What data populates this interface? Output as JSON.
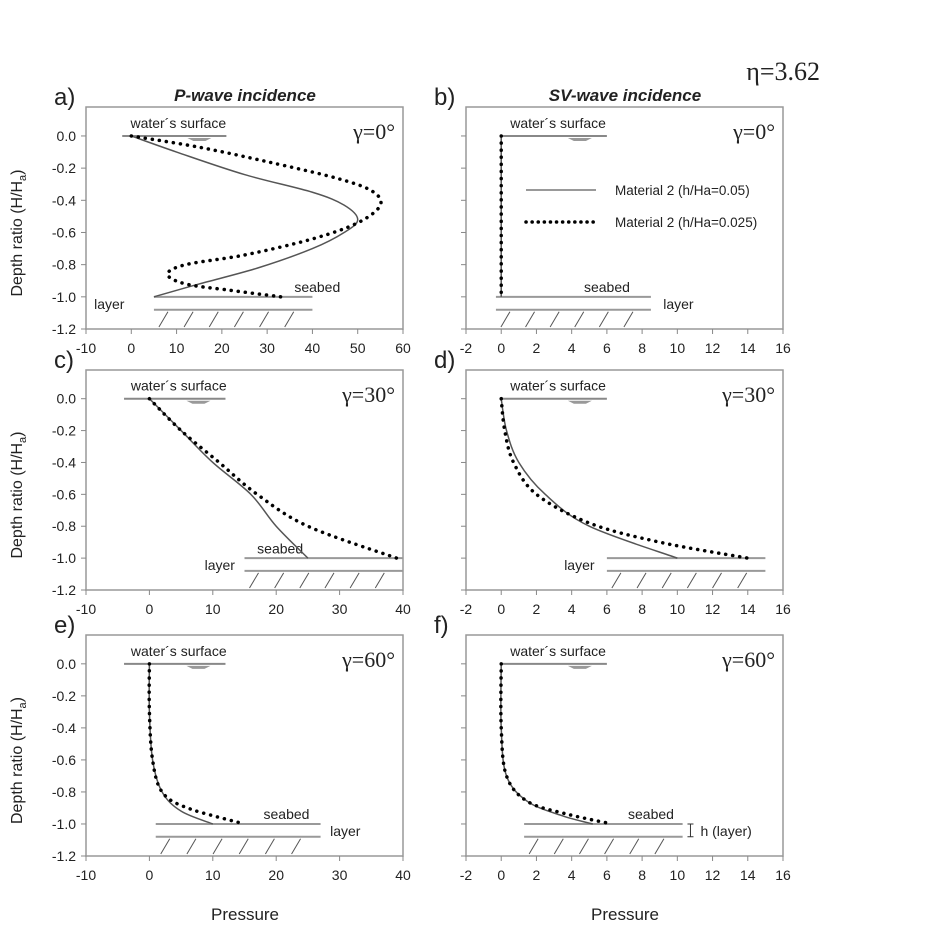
{
  "figure": {
    "eta_label": "η=3.62",
    "column_titles": [
      "P-wave incidence",
      "SV-wave incidence"
    ],
    "ylabel": "Depth ratio (H/Ha)",
    "xlabel": "Pressure",
    "legend": {
      "placement": "inside panel b, upper-middle",
      "entries": [
        {
          "label": "Material 2 (h/Ha=0.05)",
          "style": "solid",
          "color": "#555555"
        },
        {
          "label": "Material 2 (h/Ha=0.025)",
          "style": "dotted",
          "color": "#000000"
        }
      ]
    }
  },
  "chart_data": [
    {
      "type": "line",
      "panel": "a)",
      "angle": "γ=0°",
      "xlim": [
        -10,
        60
      ],
      "xticks": [
        -10,
        0,
        10,
        20,
        30,
        40,
        50,
        60
      ],
      "ylim": [
        -1.2,
        0.18
      ],
      "yticks": [
        "0.0",
        "-0.2",
        "-0.4",
        "-0.6",
        "-0.8",
        "-1.0",
        "-1.2"
      ],
      "annotations": {
        "water": "water´s surface",
        "seabed": "seabed",
        "layer": "layer"
      },
      "series": [
        {
          "name": "Material 2 (h/Ha=0.05)",
          "x": [
            0,
            10,
            25,
            40,
            47,
            50,
            47,
            40,
            28,
            15,
            5
          ],
          "y": [
            0,
            -0.1,
            -0.24,
            -0.35,
            -0.43,
            -0.52,
            -0.6,
            -0.7,
            -0.82,
            -0.92,
            -1.0
          ]
        },
        {
          "name": "Material 2 (h/Ha=0.025)",
          "x": [
            0,
            15,
            30,
            45,
            53,
            55,
            50,
            40,
            25,
            12,
            8,
            12,
            22,
            33
          ],
          "y": [
            0,
            -0.07,
            -0.16,
            -0.26,
            -0.34,
            -0.43,
            -0.54,
            -0.64,
            -0.74,
            -0.8,
            -0.86,
            -0.92,
            -0.96,
            -1.0
          ]
        }
      ],
      "deco": {
        "water": [
          -2,
          21
        ],
        "bed": [
          5,
          40
        ],
        "seabedLabel": [
          36,
          -0.97
        ],
        "layerLabel": [
          -1.5,
          -1.05,
          "end"
        ]
      }
    },
    {
      "type": "line",
      "panel": "b)",
      "angle": "γ=0°",
      "xlim": [
        -2,
        16
      ],
      "xticks": [
        -2,
        0,
        2,
        4,
        6,
        8,
        10,
        12,
        14,
        16
      ],
      "ylim": [
        -1.2,
        0.18
      ],
      "yticks": [],
      "annotations": {
        "water": "water´s surface",
        "seabed": "seabed",
        "layer": "layer"
      },
      "series": [
        {
          "name": "Material 2 (h/Ha=0.05)",
          "x": [
            0,
            0
          ],
          "y": [
            0,
            -1.0
          ]
        },
        {
          "name": "Material 2 (h/Ha=0.025)",
          "x": [
            0,
            0
          ],
          "y": [
            0,
            -1.0
          ]
        }
      ],
      "deco": {
        "water": [
          0,
          6
        ],
        "bed": [
          -0.3,
          8.5
        ],
        "seabedLabel": [
          4.7,
          -0.97
        ],
        "layerLabel": [
          9.2,
          -1.05,
          "start"
        ]
      }
    },
    {
      "type": "line",
      "panel": "c)",
      "angle": "γ=30°",
      "xlim": [
        -10,
        40
      ],
      "xticks": [
        -10,
        0,
        10,
        20,
        30,
        40
      ],
      "ylim": [
        -1.2,
        0.18
      ],
      "yticks": [
        "0.0",
        "-0.2",
        "-0.4",
        "-0.6",
        "-0.8",
        "-1.0",
        "-1.2"
      ],
      "annotations": {
        "water": "water´s surface",
        "seabed": "seabed",
        "layer": "layer"
      },
      "series": [
        {
          "name": "Material 2 (h/Ha=0.05)",
          "x": [
            0,
            5,
            10,
            16,
            20,
            25
          ],
          "y": [
            0,
            -0.2,
            -0.4,
            -0.6,
            -0.8,
            -1.0
          ]
        },
        {
          "name": "Material 2 (h/Ha=0.025)",
          "x": [
            0,
            5,
            11,
            17,
            25,
            39
          ],
          "y": [
            0,
            -0.2,
            -0.4,
            -0.6,
            -0.8,
            -1.0
          ]
        }
      ],
      "deco": {
        "water": [
          -4,
          12
        ],
        "bed": [
          15,
          40
        ],
        "seabedLabel": [
          17,
          -0.97
        ],
        "layerLabel": [
          13.5,
          -1.05,
          "end"
        ]
      }
    },
    {
      "type": "line",
      "panel": "d)",
      "angle": "γ=30°",
      "xlim": [
        -2,
        16
      ],
      "xticks": [
        -2,
        0,
        2,
        4,
        6,
        8,
        10,
        12,
        14,
        16
      ],
      "ylim": [
        -1.2,
        0.18
      ],
      "yticks": [],
      "annotations": {
        "water": "water´s surface",
        "layer": "layer"
      },
      "series": [
        {
          "name": "Material 2 (h/Ha=0.05)",
          "x": [
            0,
            0.3,
            1,
            2.5,
            5,
            10
          ],
          "y": [
            0,
            -0.2,
            -0.4,
            -0.6,
            -0.8,
            -1.0
          ]
        },
        {
          "name": "Material 2 (h/Ha=0.025)",
          "x": [
            0,
            0.2,
            0.7,
            2,
            5,
            9,
            14
          ],
          "y": [
            0,
            -0.2,
            -0.4,
            -0.6,
            -0.78,
            -0.9,
            -1.0
          ]
        }
      ],
      "deco": {
        "water": [
          0,
          6
        ],
        "bed": [
          6,
          15
        ],
        "layerLabel": [
          5.3,
          -1.05,
          "end"
        ]
      }
    },
    {
      "type": "line",
      "panel": "e)",
      "angle": "γ=60°",
      "xlim": [
        -10,
        40
      ],
      "xticks": [
        -10,
        0,
        10,
        20,
        30,
        40
      ],
      "ylim": [
        -1.2,
        0.18
      ],
      "yticks": [
        "0.0",
        "-0.2",
        "-0.4",
        "-0.6",
        "-0.8",
        "-1.0",
        "-1.2"
      ],
      "annotations": {
        "water": "water´s surface",
        "seabed": "seabed",
        "layer": "layer"
      },
      "series": [
        {
          "name": "Material 2 (h/Ha=0.05)",
          "x": [
            0,
            0,
            0.5,
            2,
            5,
            10
          ],
          "y": [
            0,
            -0.3,
            -0.6,
            -0.8,
            -0.92,
            -1.0
          ]
        },
        {
          "name": "Material 2 (h/Ha=0.025)",
          "x": [
            0,
            0,
            0.5,
            2,
            6,
            15
          ],
          "y": [
            0,
            -0.3,
            -0.6,
            -0.8,
            -0.9,
            -1.0
          ]
        }
      ],
      "deco": {
        "water": [
          -4,
          12
        ],
        "bed": [
          1,
          27
        ],
        "seabedLabel": [
          18,
          -0.97
        ],
        "layerLabel": [
          28.5,
          -1.05,
          "start"
        ]
      }
    },
    {
      "type": "line",
      "panel": "f)",
      "angle": "γ=60°",
      "xlim": [
        -2,
        16
      ],
      "xticks": [
        -2,
        0,
        2,
        4,
        6,
        8,
        10,
        12,
        14,
        16
      ],
      "ylim": [
        -1.2,
        0.18
      ],
      "yticks": [],
      "annotations": {
        "water": "water´s surface",
        "seabed": "seabed",
        "layer": "h (layer)"
      },
      "series": [
        {
          "name": "Material 2 (h/Ha=0.05)",
          "x": [
            0,
            0,
            0.3,
            1.5,
            3.5,
            5.2
          ],
          "y": [
            0,
            -0.4,
            -0.7,
            -0.86,
            -0.95,
            -1.0
          ]
        },
        {
          "name": "Material 2 (h/Ha=0.025)",
          "x": [
            0,
            0,
            0.3,
            1.5,
            3.8,
            6.3
          ],
          "y": [
            0,
            -0.4,
            -0.7,
            -0.86,
            -0.94,
            -1.0
          ]
        }
      ],
      "deco": {
        "water": [
          0,
          6
        ],
        "bed": [
          1.3,
          10.3
        ],
        "seabedLabel": [
          7.2,
          -0.97
        ],
        "layerLabel": [
          11.2,
          -1.05,
          "start"
        ],
        "arrow": true
      }
    }
  ]
}
